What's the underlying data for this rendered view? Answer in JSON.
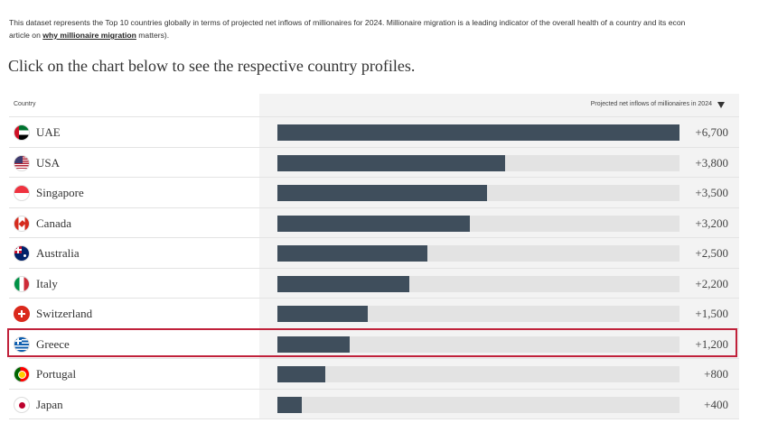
{
  "intro": {
    "line1": "This dataset represents the Top 10 countries globally in terms of projected net inflows of millionaires for 2024. Millionaire migration is a leading indicator of the overall health of a country and its econ",
    "line2_prefix": "article on ",
    "link": "why millionaire migration",
    "line2_suffix": " matters)."
  },
  "heading": "Click on the chart below to see the respective country profiles.",
  "table": {
    "country_header": "Country",
    "value_header": "Projected net inflows of millionaires in 2024",
    "sort_icon": "triangle-down-icon"
  },
  "chart_data": {
    "type": "bar",
    "orientation": "horizontal",
    "xlim": [
      0,
      6700
    ],
    "categories": [
      "UAE",
      "USA",
      "Singapore",
      "Canada",
      "Australia",
      "Italy",
      "Switzerland",
      "Greece",
      "Portugal",
      "Japan"
    ],
    "values": [
      6700,
      3800,
      3500,
      3200,
      2500,
      2200,
      1500,
      1200,
      800,
      400
    ],
    "value_labels": [
      "+6,700",
      "+3,800",
      "+3,500",
      "+3,200",
      "+2,500",
      "+2,200",
      "+1,500",
      "+1,200",
      "+800",
      "+400"
    ],
    "bar_color": "#3f4e5c",
    "track_color": "#e3e3e3"
  },
  "rows": [
    {
      "name": "UAE",
      "flag": "uae-flag-icon"
    },
    {
      "name": "USA",
      "flag": "usa-flag-icon"
    },
    {
      "name": "Singapore",
      "flag": "singapore-flag-icon"
    },
    {
      "name": "Canada",
      "flag": "canada-flag-icon"
    },
    {
      "name": "Australia",
      "flag": "australia-flag-icon"
    },
    {
      "name": "Italy",
      "flag": "italy-flag-icon"
    },
    {
      "name": "Switzerland",
      "flag": "switzerland-flag-icon"
    },
    {
      "name": "Greece",
      "flag": "greece-flag-icon"
    },
    {
      "name": "Portugal",
      "flag": "portugal-flag-icon"
    },
    {
      "name": "Japan",
      "flag": "japan-flag-icon"
    }
  ],
  "highlighted_row": "Greece",
  "highlight_color": "#c0213a"
}
